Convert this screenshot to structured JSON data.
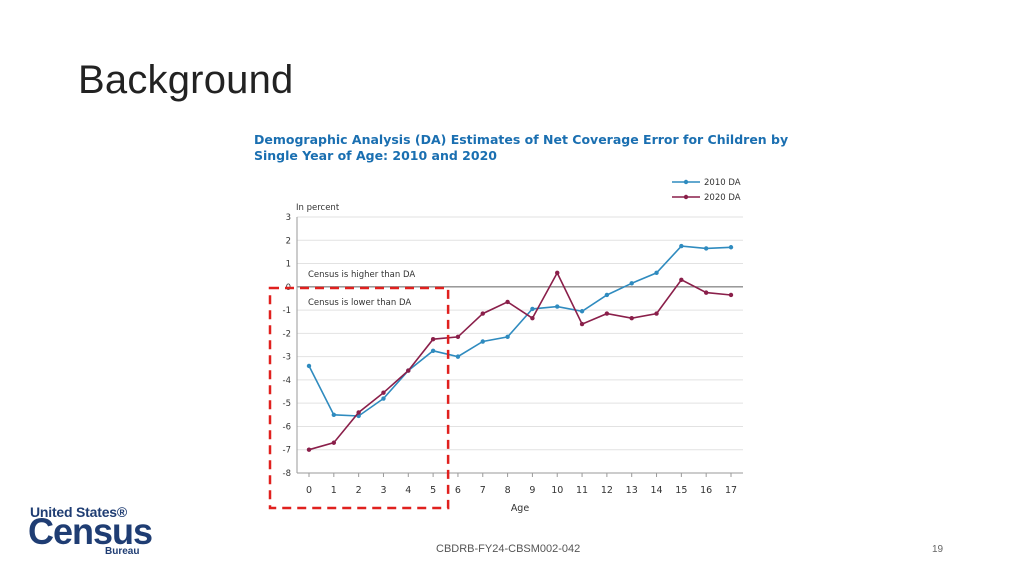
{
  "slide": {
    "title": "Background",
    "footer_code": "CBDRB-FY24-CBSM002-042",
    "page_number": "19"
  },
  "logo": {
    "line1": "United States®",
    "line2": "Census",
    "line3": "Bureau"
  },
  "colors": {
    "series_2010": "#2f8bbf",
    "series_2020": "#8a1f4a",
    "title": "#1a6fb1",
    "highlight_box": "#e0201e"
  },
  "chart_data": {
    "type": "line",
    "title": "Demographic Analysis (DA) Estimates of Net Coverage Error for Children by Single Year of Age: 2010 and 2020",
    "title_lines": [
      "Demographic Analysis (DA) Estimates of Net Coverage Error for Children by",
      "Single Year of Age: 2010 and 2020"
    ],
    "ylabel": "In percent",
    "xlabel": "Age",
    "x": [
      0,
      1,
      2,
      3,
      4,
      5,
      6,
      7,
      8,
      9,
      10,
      11,
      12,
      13,
      14,
      15,
      16,
      17
    ],
    "ylim": [
      -8,
      3
    ],
    "yticks": [
      3,
      2,
      1,
      0,
      -1,
      -2,
      -3,
      -4,
      -5,
      -6,
      -7,
      -8
    ],
    "grid": true,
    "legend_position": "top-right",
    "annotations": [
      "Census is higher than DA",
      "Census is lower than DA"
    ],
    "highlight_region_ages": [
      0,
      5
    ],
    "series": [
      {
        "name": "2010 DA",
        "values": [
          -3.4,
          -5.5,
          -5.55,
          -4.8,
          -3.6,
          -2.75,
          -3.0,
          -2.35,
          -2.15,
          -0.95,
          -0.85,
          -1.05,
          -0.35,
          0.15,
          0.6,
          1.75,
          1.65,
          1.7
        ]
      },
      {
        "name": "2020 DA",
        "values": [
          -7.0,
          -6.7,
          -5.4,
          -4.55,
          -3.6,
          -2.25,
          -2.15,
          -1.15,
          -0.65,
          -1.35,
          0.6,
          -1.6,
          -1.15,
          -1.35,
          -1.15,
          0.3,
          -0.25,
          -0.35
        ]
      }
    ]
  }
}
